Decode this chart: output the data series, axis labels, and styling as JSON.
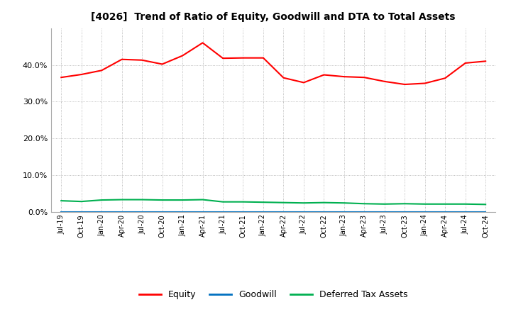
{
  "title": "[4026]  Trend of Ratio of Equity, Goodwill and DTA to Total Assets",
  "x_labels": [
    "Jul-19",
    "Oct-19",
    "Jan-20",
    "Apr-20",
    "Jul-20",
    "Oct-20",
    "Jan-21",
    "Apr-21",
    "Jul-21",
    "Oct-21",
    "Jan-22",
    "Apr-22",
    "Jul-22",
    "Oct-22",
    "Jan-23",
    "Apr-23",
    "Jul-23",
    "Oct-23",
    "Jan-24",
    "Apr-24",
    "Jul-24",
    "Oct-24"
  ],
  "equity": [
    0.366,
    0.374,
    0.385,
    0.415,
    0.413,
    0.402,
    0.425,
    0.46,
    0.418,
    0.419,
    0.419,
    0.365,
    0.352,
    0.373,
    0.368,
    0.366,
    0.355,
    0.347,
    0.35,
    0.364,
    0.405,
    0.41
  ],
  "goodwill": [
    0.0,
    0.0,
    0.0,
    0.0,
    0.0,
    0.0,
    0.0,
    0.0,
    0.0,
    0.0,
    0.0,
    0.0,
    0.0,
    0.0,
    0.0,
    0.0,
    0.0,
    0.0,
    0.0,
    0.0,
    0.0,
    0.0
  ],
  "dta": [
    0.031,
    0.029,
    0.033,
    0.034,
    0.034,
    0.033,
    0.033,
    0.034,
    0.028,
    0.028,
    0.027,
    0.026,
    0.025,
    0.026,
    0.025,
    0.023,
    0.022,
    0.023,
    0.022,
    0.022,
    0.022,
    0.021
  ],
  "equity_color": "#FF0000",
  "goodwill_color": "#0070C0",
  "dta_color": "#00B050",
  "ylim": [
    0.0,
    0.5
  ],
  "yticks": [
    0.0,
    0.1,
    0.2,
    0.3,
    0.4
  ],
  "legend_labels": [
    "Equity",
    "Goodwill",
    "Deferred Tax Assets"
  ],
  "background_color": "#FFFFFF",
  "grid_color": "#AAAAAA"
}
